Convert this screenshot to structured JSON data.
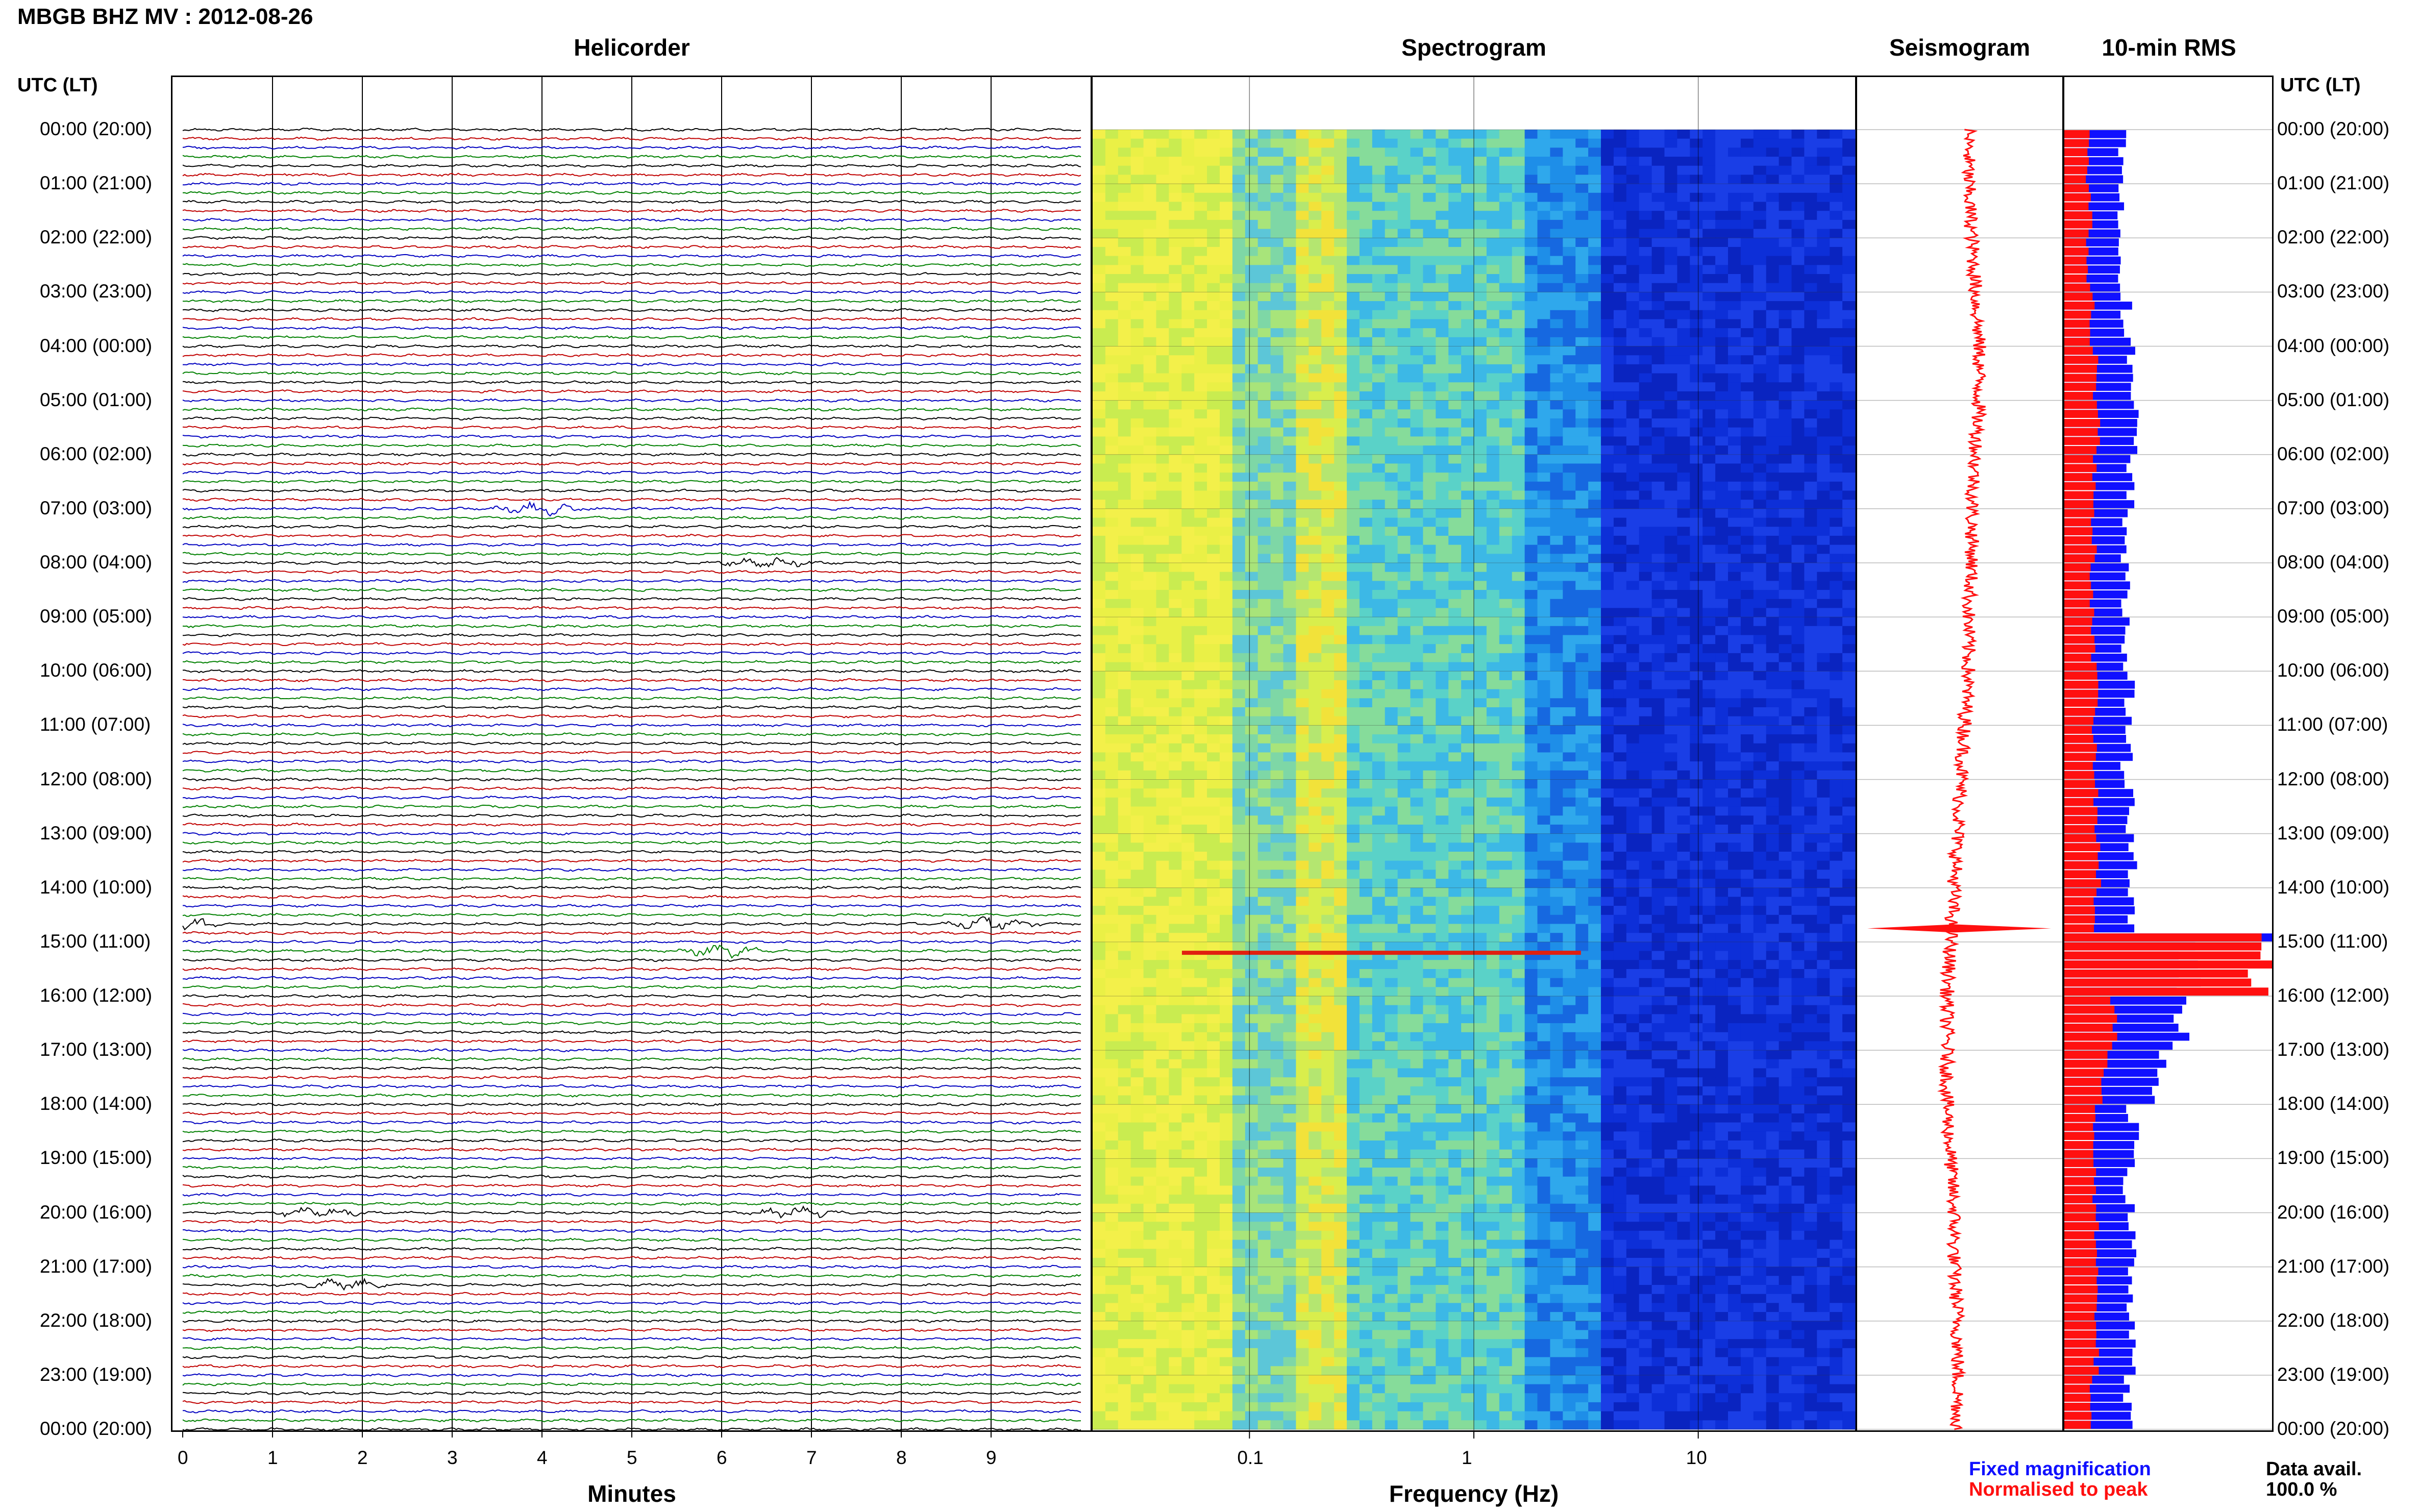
{
  "header": {
    "title": "MBGB BHZ MV : 2012-08-26",
    "panel_titles": [
      "Helicorder",
      "Spectrogram",
      "Seismogram",
      "10-min RMS"
    ],
    "utc_label_left": "UTC (LT)",
    "utc_label_right": "UTC (LT)"
  },
  "time_labels": [
    "00:00 (20:00)",
    "01:00 (21:00)",
    "02:00 (22:00)",
    "03:00 (23:00)",
    "04:00 (00:00)",
    "05:00 (01:00)",
    "06:00 (02:00)",
    "07:00 (03:00)",
    "08:00 (04:00)",
    "09:00 (05:00)",
    "10:00 (06:00)",
    "11:00 (07:00)",
    "12:00 (08:00)",
    "13:00 (09:00)",
    "14:00 (10:00)",
    "15:00 (11:00)",
    "16:00 (12:00)",
    "17:00 (13:00)",
    "18:00 (14:00)",
    "19:00 (15:00)",
    "20:00 (16:00)",
    "21:00 (17:00)",
    "22:00 (18:00)",
    "23:00 (19:00)",
    "00:00 (20:00)"
  ],
  "axes": {
    "helicorder_xlabel": "Minutes",
    "spectrogram_xlabel": "Frequency (Hz)"
  },
  "legend": {
    "fixed_label": "Fixed magnification",
    "peak_label": "Normalised to peak",
    "fixed_color": "#1010ff",
    "peak_color": "#ff1010",
    "data_avail_label": "Data avail.",
    "data_avail_value": "100.0 %"
  },
  "chart_data": [
    {
      "type": "line",
      "title": "Helicorder",
      "xlabel": "Minutes",
      "x_ticks": [
        "0",
        "1",
        "2",
        "3",
        "4",
        "5",
        "6",
        "7",
        "8",
        "9"
      ],
      "xlim": [
        0,
        10
      ],
      "trace_colors": [
        "#000000",
        "#c00000",
        "#0000c0",
        "#008000"
      ],
      "events": [
        {
          "time": "07:00",
          "minute": 4.0
        },
        {
          "time": "08:00",
          "minute": 6.5
        },
        {
          "time": "14:40",
          "minute": 0.0
        },
        {
          "time": "14:40",
          "minute": 9.0
        },
        {
          "time": "15:10",
          "minute": 6.0
        },
        {
          "time": "20:00",
          "minute": 1.5
        },
        {
          "time": "20:00",
          "minute": 6.8
        },
        {
          "time": "21:20",
          "minute": 1.8
        }
      ]
    },
    {
      "type": "heatmap",
      "title": "Spectrogram",
      "xlabel": "Frequency (Hz)",
      "x_scale": "log",
      "x_ticks": [
        "0.1",
        "1",
        "10"
      ],
      "xlim": [
        0.02,
        50
      ]
    },
    {
      "type": "line",
      "title": "Seismogram",
      "series": [
        {
          "values": [
            4,
            4,
            5,
            6,
            7,
            7,
            6,
            5,
            5,
            4,
            4,
            3,
            2,
            1,
            0,
            -1,
            -2,
            -2,
            -2,
            -1,
            0,
            0,
            1,
            1,
            1
          ]
        }
      ]
    },
    {
      "type": "bar",
      "title": "10-min RMS",
      "series": [
        {
          "name": "Fixed magnification",
          "values": [
            0.28,
            0.27,
            0.28,
            0.3,
            0.32,
            0.33,
            0.31,
            0.3,
            0.29,
            0.3,
            0.31,
            0.3,
            0.32,
            0.33,
            0.31,
            0.6,
            0.55,
            0.45,
            0.33,
            0.31,
            0.32,
            0.33,
            0.33,
            0.3
          ]
        },
        {
          "name": "Normalised to peak",
          "values": [
            0.12,
            0.13,
            0.12,
            0.14,
            0.16,
            0.17,
            0.15,
            0.15,
            0.14,
            0.15,
            0.16,
            0.15,
            0.16,
            0.17,
            0.16,
            1.0,
            0.25,
            0.2,
            0.16,
            0.15,
            0.16,
            0.16,
            0.16,
            0.14
          ]
        }
      ]
    }
  ]
}
